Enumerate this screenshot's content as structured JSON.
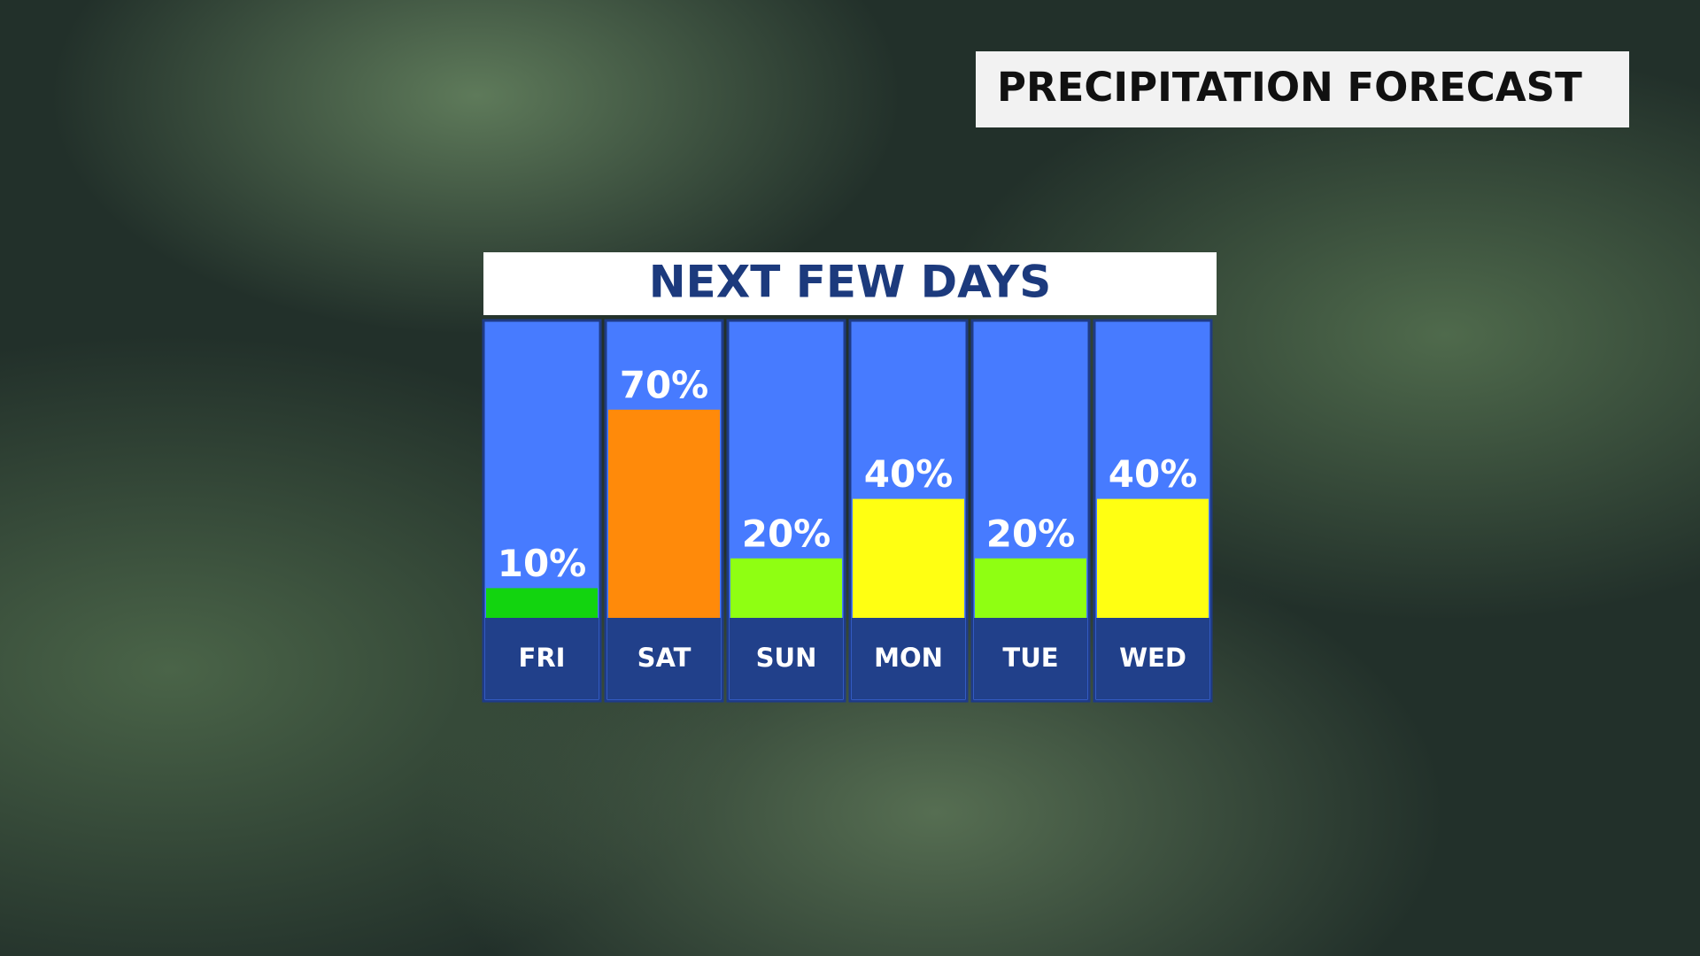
{
  "header": {
    "title": "PRECIPITATION FORECAST"
  },
  "chart_data": {
    "type": "bar",
    "title": "NEXT FEW DAYS",
    "categories": [
      "FRI",
      "SAT",
      "SUN",
      "MON",
      "TUE",
      "WED"
    ],
    "values": [
      10,
      70,
      20,
      40,
      20,
      40
    ],
    "value_labels": [
      "10%",
      "70%",
      "20%",
      "40%",
      "20%",
      "40%"
    ],
    "colors": [
      "#12d40f",
      "#ff8a0a",
      "#8fff12",
      "#ffff12",
      "#8fff12",
      "#ffff12"
    ],
    "ylim": [
      0,
      100
    ]
  }
}
